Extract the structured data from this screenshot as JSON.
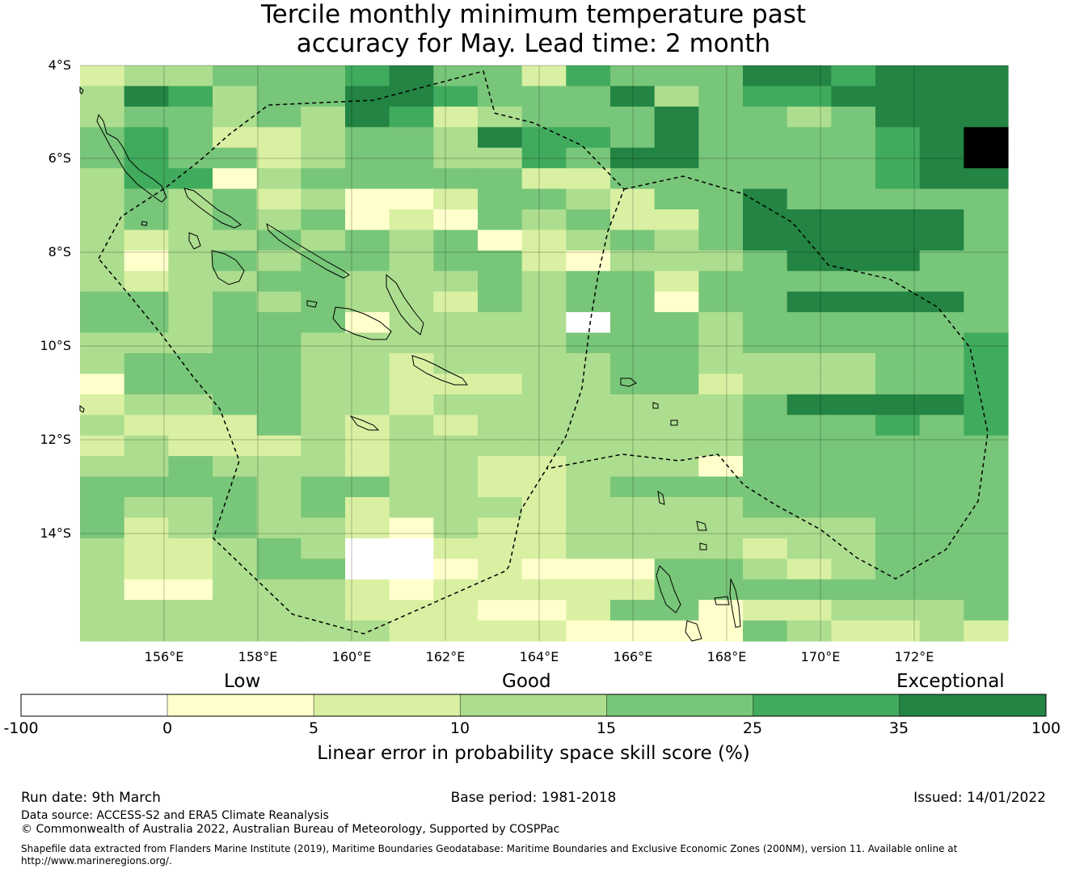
{
  "title": {
    "line1": "Tercile monthly minimum temperature past",
    "line2": "accuracy for May. Lead time: 2 month"
  },
  "map": {
    "lat_labels": [
      "4°S",
      "6°S",
      "8°S",
      "10°S",
      "12°S",
      "14°S"
    ],
    "lon_labels": [
      "156°E",
      "158°E",
      "160°E",
      "162°E",
      "164°E",
      "166°E",
      "168°E",
      "170°E",
      "172°E"
    ],
    "lat_range": [
      -16.3,
      -4.0
    ],
    "lon_range": [
      154.2,
      174.0
    ],
    "grid_step_deg": 0.83,
    "class_colors": [
      "#ffffff",
      "#ffffcc",
      "#d9f0a3",
      "#addd8e",
      "#78c679",
      "#41ab5d",
      "#238443"
    ],
    "skill_class_grid": [
      "233444564425444665666",
      "365344665444634556666",
      "344343652344464434666",
      "454223443655464444567",
      "454423443354664444567",
      "355134444422444444566",
      "343423112443244644444",
      "343434121434224666664",
      "323343434123434666664",
      "313434434421333466644",
      "323344333434424444444",
      "443434332434414466664",
      "443444133330443444444",
      "333443333334443444445",
      "344443323333443333445",
      "144443322233442333445",
      "233443323333333466665",
      "322243232333333444545",
      "232223233333333444444",
      "334333233223331444444",
      "444434433223444444444",
      "433434233323333444444",
      "423433213223333333444",
      "322343002223333233444",
      "322344001211144323444",
      "311333212222244444444",
      "333333222112441223334",
      "333333322221111432232"
    ]
  },
  "legend": {
    "category_labels": [
      "Low",
      "Good",
      "Exceptional"
    ],
    "tick_labels": [
      "-100",
      "0",
      "5",
      "10",
      "15",
      "25",
      "35",
      "100"
    ],
    "caption": "Linear error in probability space skill score (%)"
  },
  "footer": {
    "run_date": "Run date: 9th March",
    "base_period": "Base period: 1981-2018",
    "issued": "Issued: 14/01/2022",
    "data_source": "Data source: ACCESS-S2 and ERA5 Climate Reanalysis",
    "copyright": "© Commonwealth of Australia 2022, Australian Bureau of Meteorology, Supported by COSPPac",
    "shapefile_line1": "Shapefile data extracted from Flanders Marine Institute (2019), Maritime Boundaries Geodatabase: Maritime Boundaries and Exclusive Economic Zones (200NM), version 11. Available online at",
    "shapefile_line2": "http://www.marineregions.org/."
  }
}
